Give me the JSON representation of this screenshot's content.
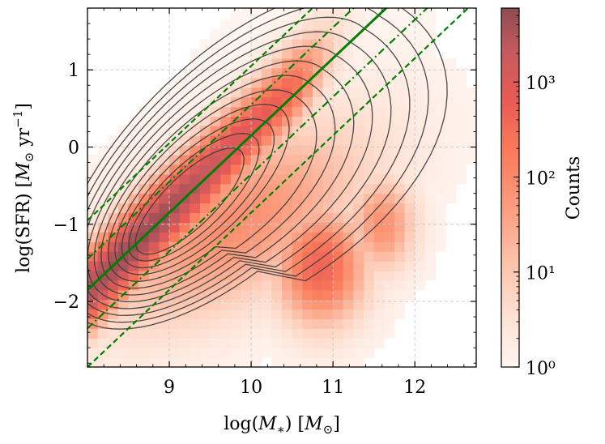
{
  "chart_data": {
    "type": "heatmap",
    "title": "",
    "xlabel": "log(M_*) [M_⊙]",
    "ylabel": "log(SFR) [M_⊙ yr^-1]",
    "xlim": [
      8.0,
      12.75
    ],
    "ylim": [
      -2.85,
      1.8
    ],
    "x_ticks": [
      9,
      10,
      11,
      12
    ],
    "y_ticks": [
      -2,
      -1,
      0,
      1
    ],
    "x_tick_labels": [
      "9",
      "10",
      "11",
      "12"
    ],
    "y_tick_labels": [
      "−2",
      "−1",
      "0",
      "1"
    ],
    "grid": true,
    "colorbar": {
      "label": "Counts",
      "scale": "log",
      "range": [
        1,
        6000
      ],
      "tick_values": [
        1,
        10,
        100,
        1000
      ],
      "tick_labels": [
        "10⁰",
        "10¹",
        "10²",
        "10³"
      ],
      "colors": [
        "#fff5f0",
        "#fdd5c3",
        "#fca689",
        "#fb7b5b",
        "#e85a55",
        "#c55a5f",
        "#8e4a52"
      ]
    },
    "density_description": "2D histogram of galaxies; high density ridge along main sequence from (8.2,-1.6) to (10,0.3), secondary quenched cloud around log M 10.5-11.5, log SFR -2 to -0.5",
    "contours": {
      "color": "#3a3a3a",
      "levels": 12
    },
    "lines": [
      {
        "name": "main-sequence",
        "style": "solid",
        "color": "#008000",
        "slope": 1.0,
        "intercept": -9.85
      },
      {
        "name": "upper-dashdot",
        "style": "dashdot",
        "color": "#008000",
        "slope": 1.0,
        "intercept": -9.45
      },
      {
        "name": "upper-dashed",
        "style": "dashed",
        "color": "#008000",
        "slope": 1.0,
        "intercept": -8.95
      },
      {
        "name": "lower-dashdot",
        "style": "dashdot",
        "color": "#008000",
        "slope": 1.0,
        "intercept": -10.35
      },
      {
        "name": "lower-dashed",
        "style": "dashed",
        "color": "#008000",
        "slope": 1.0,
        "intercept": -10.85
      }
    ]
  }
}
